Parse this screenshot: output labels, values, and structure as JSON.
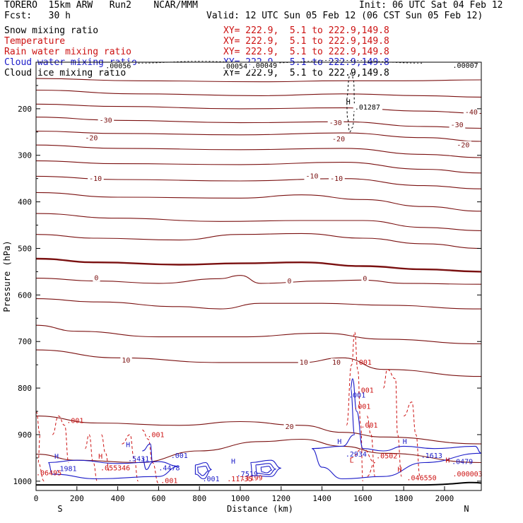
{
  "header": {
    "line1_left": "TORERO  15km ARW   Run2    NCAR/MMM",
    "line1_right": "Init: 06 UTC Sat 04 Feb 12",
    "line2_left": "Fcst:   30 h",
    "line2_right": "Valid: 12 UTC Sun 05 Feb 12 (06 CST Sun 05 Feb 12)"
  },
  "legend": [
    {
      "name": "Snow mixing ratio",
      "xy": "XY= 222.9,  5.1 to 222.9,149.8",
      "color": "#000000"
    },
    {
      "name": "Temperature",
      "xy": "XY= 222.9,  5.1 to 222.9,149.8",
      "color": "#cc1111"
    },
    {
      "name": "Rain water mixing ratio",
      "xy": "XY= 222.9,  5.1 to 222.9,149.8",
      "color": "#cc1111"
    },
    {
      "name": "Cloud water mixing ratio",
      "xy": "XY= 222.9,  5.1 to 222.9,149.8",
      "color": "#1a1ac8"
    },
    {
      "name": "Cloud ice mixing ratio",
      "xy": "XY= 222.9,  5.1 to 222.9,149.8",
      "color": "#000000"
    }
  ],
  "chart_data": {
    "type": "contour-cross-section",
    "xlabel": "Distance (km)",
    "ylabel": "Pressure (hPa)",
    "xlim": [
      0,
      2180
    ],
    "ylim": [
      100,
      1020
    ],
    "x_ticks": [
      0,
      200,
      400,
      600,
      800,
      1000,
      1200,
      1400,
      1600,
      1800,
      2000
    ],
    "y_ticks": [
      200,
      300,
      400,
      500,
      600,
      700,
      800,
      900,
      1000
    ],
    "left_end": "S",
    "right_end": "N",
    "temperature_contours": [
      {
        "level": -40,
        "points": [
          [
            0,
            135
          ],
          [
            500,
            140
          ],
          [
            1100,
            142
          ],
          [
            1500,
            140
          ],
          [
            1800,
            140
          ],
          [
            2180,
            138
          ]
        ]
      },
      {
        "level": -40,
        "points": [
          [
            0,
            160
          ],
          [
            500,
            168
          ],
          [
            1100,
            172
          ],
          [
            1500,
            168
          ],
          [
            1900,
            172
          ],
          [
            2180,
            175
          ]
        ]
      },
      {
        "level": -40,
        "points": [
          [
            0,
            190
          ],
          [
            400,
            195
          ],
          [
            1000,
            200
          ],
          [
            1500,
            198
          ],
          [
            1900,
            205
          ],
          [
            2180,
            210
          ]
        ]
      },
      {
        "level": -30,
        "points": [
          [
            0,
            218
          ],
          [
            400,
            225
          ],
          [
            1000,
            230
          ],
          [
            1500,
            228
          ],
          [
            1900,
            238
          ],
          [
            2180,
            242
          ]
        ]
      },
      {
        "level": -30,
        "points": [
          [
            0,
            248
          ],
          [
            400,
            253
          ],
          [
            1000,
            256
          ],
          [
            1500,
            252
          ],
          [
            1900,
            262
          ],
          [
            2180,
            270
          ]
        ]
      },
      {
        "level": -20,
        "points": [
          [
            0,
            278
          ],
          [
            400,
            285
          ],
          [
            1000,
            288
          ],
          [
            1500,
            285
          ],
          [
            1900,
            298
          ],
          [
            2180,
            305
          ]
        ]
      },
      {
        "level": -20,
        "points": [
          [
            0,
            312
          ],
          [
            400,
            318
          ],
          [
            1000,
            320
          ],
          [
            1500,
            315
          ],
          [
            1900,
            330
          ],
          [
            2180,
            338
          ]
        ]
      },
      {
        "level": -10,
        "points": [
          [
            0,
            345
          ],
          [
            400,
            352
          ],
          [
            1000,
            355
          ],
          [
            1500,
            350
          ],
          [
            1900,
            365
          ],
          [
            2180,
            372
          ]
        ]
      },
      {
        "level": -10,
        "points": [
          [
            0,
            380
          ],
          [
            400,
            390
          ],
          [
            1000,
            392
          ],
          [
            1300,
            385
          ],
          [
            1600,
            395
          ],
          [
            1900,
            410
          ],
          [
            2180,
            420
          ]
        ]
      },
      {
        "level": -10,
        "points": [
          [
            0,
            425
          ],
          [
            400,
            435
          ],
          [
            900,
            442
          ],
          [
            1300,
            440
          ],
          [
            1600,
            440
          ],
          [
            1900,
            455
          ],
          [
            2180,
            462
          ]
        ]
      },
      {
        "level": -10,
        "points": [
          [
            0,
            470
          ],
          [
            300,
            478
          ],
          [
            700,
            482
          ],
          [
            1000,
            470
          ],
          [
            1300,
            468
          ],
          [
            1600,
            478
          ],
          [
            1900,
            490
          ],
          [
            2180,
            500
          ]
        ]
      },
      {
        "level": 0,
        "points": [
          [
            0,
            522
          ],
          [
            300,
            530
          ],
          [
            700,
            535
          ],
          [
            1000,
            532
          ],
          [
            1300,
            530
          ],
          [
            1600,
            538
          ],
          [
            1900,
            545
          ],
          [
            2180,
            550
          ]
        ]
      },
      {
        "level": 0,
        "points": [
          [
            0,
            564
          ],
          [
            300,
            570
          ],
          [
            600,
            575
          ],
          [
            900,
            565
          ],
          [
            1000,
            558
          ],
          [
            1100,
            575
          ],
          [
            1400,
            570
          ],
          [
            1600,
            568
          ],
          [
            1800,
            575
          ],
          [
            2180,
            577
          ]
        ]
      },
      {
        "level": 10,
        "points": [
          [
            0,
            608
          ],
          [
            300,
            615
          ],
          [
            700,
            625
          ],
          [
            900,
            630
          ],
          [
            1100,
            618
          ],
          [
            1400,
            618
          ],
          [
            1700,
            622
          ],
          [
            2180,
            630
          ]
        ]
      },
      {
        "level": 10,
        "points": [
          [
            0,
            665
          ],
          [
            200,
            678
          ],
          [
            600,
            690
          ],
          [
            1000,
            690
          ],
          [
            1400,
            682
          ],
          [
            1700,
            695
          ],
          [
            2180,
            705
          ]
        ]
      },
      {
        "level": 10,
        "points": [
          [
            0,
            718
          ],
          [
            400,
            735
          ],
          [
            900,
            745
          ],
          [
            1300,
            745
          ],
          [
            1500,
            735
          ],
          [
            1700,
            760
          ],
          [
            2180,
            775
          ]
        ]
      },
      {
        "level": 20,
        "points": [
          [
            0,
            860
          ],
          [
            300,
            875
          ],
          [
            700,
            880
          ],
          [
            1000,
            872
          ],
          [
            1300,
            880
          ],
          [
            1500,
            895
          ],
          [
            1700,
            905
          ],
          [
            2180,
            920
          ]
        ]
      },
      {
        "level": 20,
        "points": [
          [
            0,
            942
          ],
          [
            200,
            955
          ],
          [
            500,
            960
          ],
          [
            800,
            935
          ],
          [
            1100,
            915
          ],
          [
            1300,
            910
          ],
          [
            1500,
            925
          ],
          [
            1700,
            940
          ],
          [
            2180,
            960
          ]
        ]
      }
    ],
    "temperature_labels": [
      {
        "text": "-30",
        "x": 310,
        "p": 230
      },
      {
        "text": "-30",
        "x": 1435,
        "p": 235
      },
      {
        "text": "-30",
        "x": 2030,
        "p": 240
      },
      {
        "text": "-40",
        "x": 2100,
        "p": 212
      },
      {
        "text": "-20",
        "x": 240,
        "p": 268
      },
      {
        "text": "-20",
        "x": 1450,
        "p": 270
      },
      {
        "text": "-20",
        "x": 2060,
        "p": 283
      },
      {
        "text": "-10",
        "x": 260,
        "p": 355
      },
      {
        "text": "-10",
        "x": 1320,
        "p": 350
      },
      {
        "text": "-10",
        "x": 1440,
        "p": 355
      },
      {
        "text": "0",
        "x": 285,
        "p": 568
      },
      {
        "text": "0",
        "x": 1230,
        "p": 575
      },
      {
        "text": "0",
        "x": 1600,
        "p": 570
      },
      {
        "text": "10",
        "x": 420,
        "p": 745
      },
      {
        "text": "10",
        "x": 1290,
        "p": 750
      },
      {
        "text": "10",
        "x": 1450,
        "p": 750
      },
      {
        "text": "20",
        "x": 1220,
        "p": 888
      }
    ],
    "rain_labels": [
      {
        "text": ".001",
        "x": 150,
        "p": 875
      },
      {
        "text": ".001",
        "x": 545,
        "p": 905
      },
      {
        "text": ".001",
        "x": 1560,
        "p": 750
      },
      {
        "text": ".001",
        "x": 1570,
        "p": 810
      },
      {
        "text": ".001",
        "x": 1555,
        "p": 845
      },
      {
        "text": ".001",
        "x": 1590,
        "p": 885
      },
      {
        "text": ".055346",
        "x": 315,
        "p": 977
      },
      {
        "text": ".11735",
        "x": 935,
        "p": 1000
      },
      {
        "text": ".1199",
        "x": 1005,
        "p": 998
      },
      {
        "text": ".0502",
        "x": 1665,
        "p": 951
      },
      {
        "text": ".046550",
        "x": 1815,
        "p": 998
      },
      {
        "text": ".000003",
        "x": 2040,
        "p": 990
      },
      {
        "text": ".06495",
        "x": 0,
        "p": 987
      },
      {
        "text": ".001",
        "x": 610,
        "p": 1004
      }
    ],
    "cloud_labels": [
      {
        "text": ".001",
        "x": 660,
        "p": 950
      },
      {
        "text": ".001",
        "x": 815,
        "p": 1000
      },
      {
        "text": ".5431",
        "x": 450,
        "p": 957
      },
      {
        "text": ".4478",
        "x": 600,
        "p": 977
      },
      {
        "text": ".7519",
        "x": 982,
        "p": 990
      },
      {
        "text": ".1981",
        "x": 95,
        "p": 978
      },
      {
        "text": ".2934",
        "x": 1515,
        "p": 947
      },
      {
        "text": ".1613",
        "x": 1885,
        "p": 950
      },
      {
        "text": ".0479",
        "x": 2035,
        "p": 963
      },
      {
        "text": ".001",
        "x": 1530,
        "p": 820
      }
    ],
    "ice_snow_labels": [
      {
        "text": ".00056",
        "x": 340,
        "p": 113
      },
      {
        "text": ".00054",
        "x": 910,
        "p": 114
      },
      {
        "text": ".00049",
        "x": 1055,
        "p": 112
      },
      {
        "text": ".00007",
        "x": 2040,
        "p": 112
      },
      {
        "text": ".01287",
        "x": 1560,
        "p": 202
      }
    ],
    "highs": [
      {
        "text": "H",
        "x": 1518,
        "p": 190,
        "color": "#000000"
      },
      {
        "text": "H",
        "x": 440,
        "p": 927,
        "color": "#1a1ac8"
      },
      {
        "text": "H",
        "x": 305,
        "p": 952,
        "color": "#cc1111"
      },
      {
        "text": "H",
        "x": 955,
        "p": 962,
        "color": "#1a1ac8"
      },
      {
        "text": "H",
        "x": 90,
        "p": 952,
        "color": "#1a1ac8"
      },
      {
        "text": "H",
        "x": 1475,
        "p": 920,
        "color": "#1a1ac8"
      },
      {
        "text": "H",
        "x": 1795,
        "p": 920,
        "color": "#1a1ac8"
      },
      {
        "text": "H",
        "x": 2005,
        "p": 960,
        "color": "#cc1111"
      },
      {
        "text": "H",
        "x": 1770,
        "p": 980,
        "color": "#cc1111"
      }
    ],
    "lows": [
      {
        "text": "L",
        "x": 1535,
        "p": 960,
        "color": "#cc1111"
      }
    ]
  }
}
